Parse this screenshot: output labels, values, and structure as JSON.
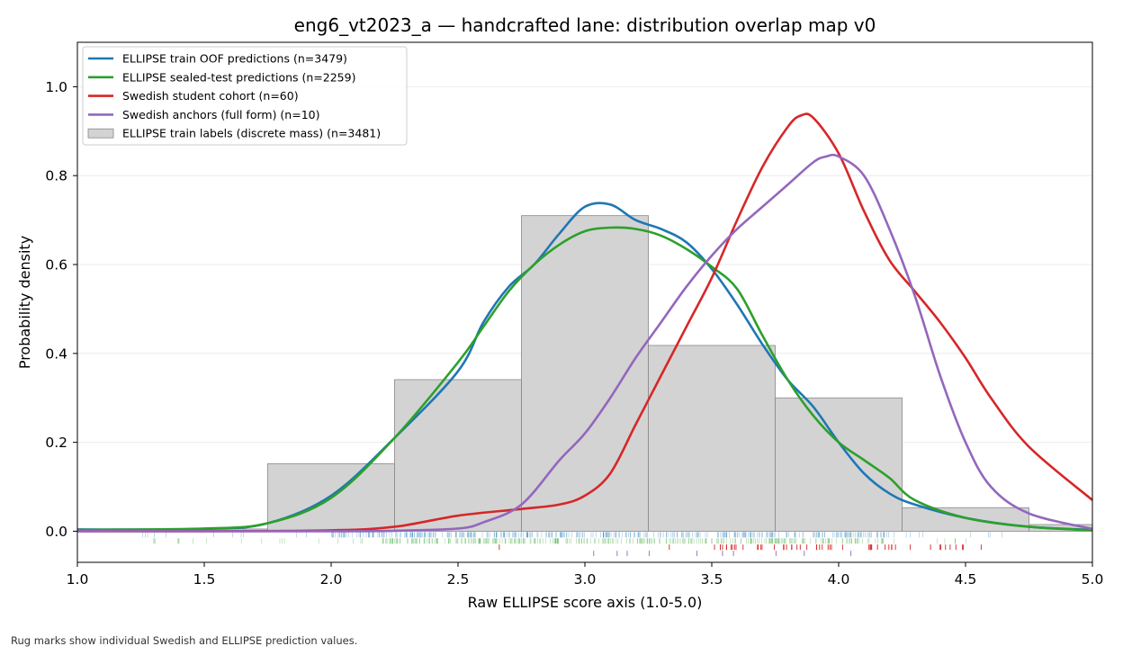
{
  "footnote": "Rug marks show individual Swedish and ELLIPSE prediction values.",
  "chart_data": {
    "type": "area",
    "title": "eng6_vt2023_a — handcrafted lane: distribution overlap map v0",
    "xlabel": "Raw ELLIPSE score axis (1.0-5.0)",
    "ylabel": "Probability density",
    "xlim": [
      1.0,
      5.0
    ],
    "ylim": [
      -0.07,
      1.1
    ],
    "x_ticks": [
      "1.0",
      "1.5",
      "2.0",
      "2.5",
      "3.0",
      "3.5",
      "4.0",
      "4.5",
      "5.0"
    ],
    "y_ticks": [
      "0.0",
      "0.2",
      "0.4",
      "0.6",
      "0.8",
      "1.0"
    ],
    "grid": "horizontal",
    "legend_position": "top-left",
    "histogram": {
      "name": "ELLIPSE train labels (discrete mass) (n=3481)",
      "color": "#d3d3d3",
      "edge_color": "#888888",
      "bins": [
        {
          "x0": 1.25,
          "x1": 1.75,
          "value": 0.005
        },
        {
          "x0": 1.75,
          "x1": 2.25,
          "value": 0.152
        },
        {
          "x0": 2.25,
          "x1": 2.75,
          "value": 0.341
        },
        {
          "x0": 2.75,
          "x1": 3.25,
          "value": 0.71
        },
        {
          "x0": 3.25,
          "x1": 3.75,
          "value": 0.418
        },
        {
          "x0": 3.75,
          "x1": 4.25,
          "value": 0.3
        },
        {
          "x0": 4.25,
          "x1": 4.75,
          "value": 0.053
        },
        {
          "x0": 4.75,
          "x1": 5.25,
          "value": 0.015
        }
      ]
    },
    "series": [
      {
        "name": "ELLIPSE train OOF predictions (n=3479)",
        "color": "#1f77b4",
        "x": [
          1.0,
          1.5,
          1.75,
          2.0,
          2.25,
          2.5,
          2.6,
          2.7,
          2.8,
          2.9,
          3.0,
          3.1,
          3.2,
          3.3,
          3.4,
          3.5,
          3.6,
          3.7,
          3.8,
          3.9,
          4.0,
          4.1,
          4.2,
          4.3,
          4.5,
          4.75,
          5.0
        ],
        "values": [
          0.004,
          0.005,
          0.018,
          0.08,
          0.21,
          0.36,
          0.47,
          0.55,
          0.6,
          0.67,
          0.73,
          0.735,
          0.7,
          0.68,
          0.65,
          0.59,
          0.51,
          0.42,
          0.34,
          0.28,
          0.2,
          0.13,
          0.085,
          0.06,
          0.03,
          0.01,
          0.003
        ]
      },
      {
        "name": "ELLIPSE sealed-test predictions (n=2259)",
        "color": "#2ca02c",
        "x": [
          1.0,
          1.5,
          1.75,
          2.0,
          2.25,
          2.5,
          2.6,
          2.7,
          2.8,
          2.9,
          3.0,
          3.1,
          3.2,
          3.3,
          3.4,
          3.5,
          3.6,
          3.7,
          3.8,
          3.9,
          4.0,
          4.1,
          4.2,
          4.3,
          4.5,
          4.75,
          5.0
        ],
        "values": [
          0.003,
          0.006,
          0.018,
          0.075,
          0.21,
          0.38,
          0.46,
          0.54,
          0.6,
          0.645,
          0.675,
          0.683,
          0.68,
          0.665,
          0.635,
          0.595,
          0.545,
          0.44,
          0.34,
          0.26,
          0.2,
          0.16,
          0.12,
          0.07,
          0.03,
          0.01,
          0.002
        ]
      },
      {
        "name": "Swedish student cohort (n=60)",
        "color": "#d62728",
        "x": [
          1.0,
          1.5,
          2.0,
          2.25,
          2.5,
          2.75,
          2.9,
          3.0,
          3.1,
          3.2,
          3.3,
          3.4,
          3.5,
          3.6,
          3.7,
          3.8,
          3.85,
          3.9,
          4.0,
          4.1,
          4.2,
          4.3,
          4.4,
          4.5,
          4.6,
          4.75,
          5.0
        ],
        "values": [
          0.0,
          0.0,
          0.002,
          0.01,
          0.035,
          0.05,
          0.06,
          0.08,
          0.13,
          0.24,
          0.35,
          0.46,
          0.57,
          0.7,
          0.82,
          0.91,
          0.935,
          0.93,
          0.85,
          0.72,
          0.61,
          0.54,
          0.47,
          0.39,
          0.3,
          0.19,
          0.07
        ]
      },
      {
        "name": "Swedish anchors (full form) (n=10)",
        "color": "#9467bd",
        "x": [
          1.0,
          2.0,
          2.25,
          2.5,
          2.6,
          2.75,
          2.9,
          3.0,
          3.1,
          3.2,
          3.3,
          3.4,
          3.5,
          3.6,
          3.7,
          3.8,
          3.9,
          3.95,
          4.0,
          4.1,
          4.2,
          4.3,
          4.4,
          4.5,
          4.6,
          4.75,
          5.0
        ],
        "values": [
          0.0,
          0.0,
          0.001,
          0.006,
          0.02,
          0.06,
          0.16,
          0.22,
          0.3,
          0.39,
          0.47,
          0.55,
          0.62,
          0.68,
          0.73,
          0.78,
          0.83,
          0.843,
          0.843,
          0.8,
          0.68,
          0.53,
          0.35,
          0.2,
          0.1,
          0.04,
          0.005
        ]
      }
    ],
    "rugs": [
      {
        "name": "ELLIPSE train OOF predictions",
        "color": "#1f77b4",
        "row": -0.008,
        "dense_range": [
          2.0,
          4.2
        ],
        "sparse_range": [
          1.25,
          4.7
        ]
      },
      {
        "name": "ELLIPSE sealed-test predictions",
        "color": "#2ca02c",
        "row": -0.022,
        "dense_range": [
          2.2,
          4.2
        ],
        "sparse_range": [
          1.3,
          4.6
        ]
      },
      {
        "name": "Swedish student cohort",
        "color": "#d62728",
        "row": -0.036,
        "dense_range": [
          3.5,
          4.5
        ],
        "sparse_range": [
          2.55,
          4.8
        ]
      },
      {
        "name": "Swedish anchors (full form)",
        "color": "#9467bd",
        "row": -0.05,
        "dense_range": [
          2.9,
          4.1
        ],
        "sparse_range": [
          2.9,
          4.1
        ]
      }
    ]
  }
}
